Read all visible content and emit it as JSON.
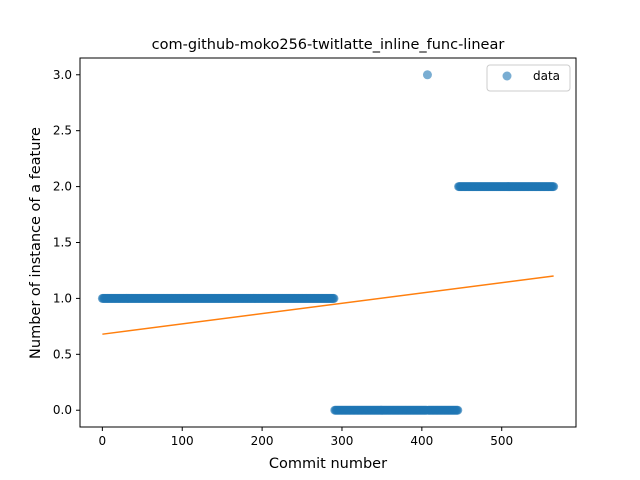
{
  "chart_data": {
    "type": "scatter",
    "title": "com-github-moko256-twitlatte_inline_func-linear",
    "xlabel": "Commit number",
    "ylabel": "Number of instance of a feature",
    "xlim": [
      -28,
      593
    ],
    "ylim": [
      -0.15,
      3.15
    ],
    "xticks": [
      0,
      100,
      200,
      300,
      400,
      500
    ],
    "yticks": [
      0.0,
      0.5,
      1.0,
      1.5,
      2.0,
      2.5,
      3.0
    ],
    "xtick_labels": [
      "0",
      "100",
      "200",
      "300",
      "400",
      "500"
    ],
    "ytick_labels": [
      "0.0",
      "0.5",
      "1.0",
      "1.5",
      "2.0",
      "2.5",
      "3.0"
    ],
    "grid": false,
    "legend": {
      "position": "top-right",
      "entries": [
        "data"
      ]
    },
    "colors": {
      "data": "#1f77b4",
      "fit": "#ff7f0e"
    },
    "series": [
      {
        "name": "data",
        "kind": "points",
        "segments": [
          {
            "x_start": 0,
            "x_end": 290,
            "y": 1
          },
          {
            "x_start": 291,
            "x_end": 406,
            "y": 0
          },
          {
            "x_start": 407,
            "x_end": 407,
            "y": 3
          },
          {
            "x_start": 408,
            "x_end": 445,
            "y": 0
          },
          {
            "x_start": 446,
            "x_end": 565,
            "y": 2
          }
        ]
      },
      {
        "kind": "line",
        "x": [
          0,
          565
        ],
        "y": [
          0.68,
          1.2
        ]
      }
    ]
  }
}
